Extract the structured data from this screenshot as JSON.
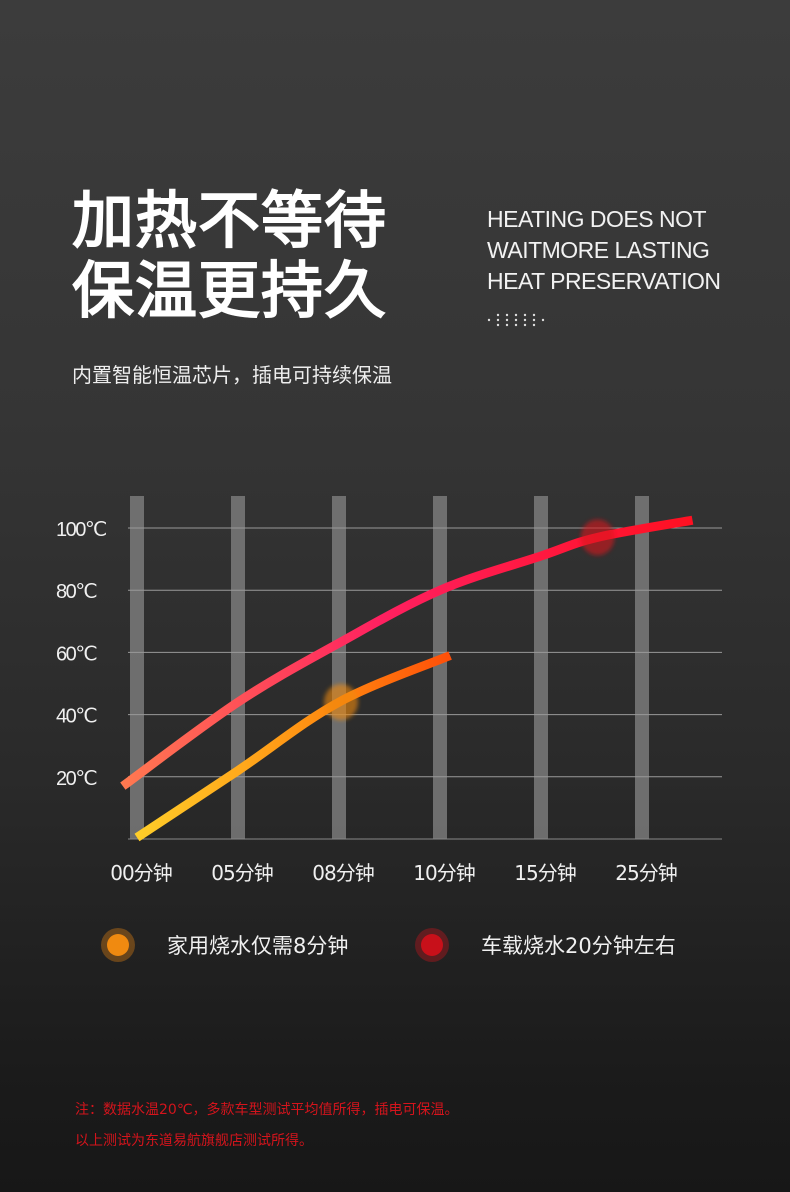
{
  "header": {
    "title_line1": "加热不等待",
    "title_line2": "保温更持久",
    "english_lines": [
      "HEATING DOES NOT",
      "WAITMORE LASTING",
      "HEAT PRESERVATION"
    ],
    "subtitle": "内置智能恒温芯片，插电可持续保温"
  },
  "chart_data": {
    "type": "line",
    "title": "",
    "xlabel": "",
    "ylabel": "",
    "categories": [
      "00分钟",
      "05分钟",
      "08分钟",
      "10分钟",
      "15分钟",
      "25分钟"
    ],
    "y_ticks": [
      "20℃",
      "40℃",
      "60℃",
      "80℃",
      "100℃"
    ],
    "y_tick_values": [
      20,
      40,
      60,
      80,
      100
    ],
    "ylim": [
      0,
      110
    ],
    "grid": true,
    "series": [
      {
        "name": "车载烧水20分钟左右",
        "color_start": "#ff7a50",
        "color_mid": "#ff2060",
        "color_end": "#ff1020",
        "points": [
          [
            -0.14,
            17
          ],
          [
            1,
            44
          ],
          [
            2,
            63
          ],
          [
            3,
            80
          ],
          [
            4,
            91
          ],
          [
            4.56,
            97
          ],
          [
            5.5,
            102.5
          ]
        ],
        "marker": [
          4.56,
          97
        ],
        "marker_color": "#d8141e"
      },
      {
        "name": "家用烧水仅需8分钟",
        "color_start": "#ffd02a",
        "color_mid": "#ff8a10",
        "color_end": "#ff4a08",
        "points": [
          [
            0,
            0.5
          ],
          [
            1,
            22
          ],
          [
            2,
            44
          ],
          [
            3.1,
            59
          ]
        ],
        "marker": [
          2.02,
          44
        ],
        "marker_color": "#f08a10"
      }
    ],
    "legend_position": "bottom"
  },
  "legend": [
    {
      "label": "家用烧水仅需8分钟",
      "color": "#f08a10"
    },
    {
      "label": "车载烧水20分钟左右",
      "color": "#d8141e"
    }
  ],
  "notes": [
    "注：数据水温20℃，多款车型测试平均值所得，插电可保温。",
    "以上测试为东道易航旗舰店测试所得。"
  ]
}
